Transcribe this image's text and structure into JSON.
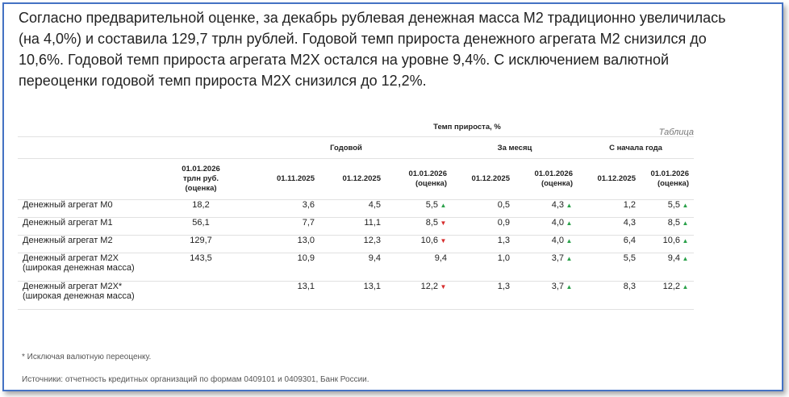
{
  "intro_text": "Согласно предварительной оценке, за декабрь рублевая денежная масса М2 традиционно увеличилась (на 4,0%) и составила 129,7 трлн рублей. Годовой темп прироста денежного агрегата М2 снизился до 10,6%. Годовой темп прироста агрегата М2Х остался на уровне 9,4%. С исключением валютной переоценки годовой темп прироста М2Х снизился до 12,2%.",
  "table_tag": "Таблица",
  "header": {
    "growth_rate": "Темп прироста, %",
    "annual": "Годовой",
    "monthly": "За месяц",
    "ytd": "С начала года",
    "cols": [
      "01.01.2026\nтрлн руб.\n(оценка)",
      "01.11.2025",
      "01.12.2025",
      "01.01.2026\n(оценка)",
      "01.12.2025",
      "01.01.2026\n(оценка)",
      "01.12.2025",
      "01.01.2026\n(оценка)"
    ]
  },
  "rows": [
    {
      "name": "Денежный агрегат М0",
      "cells": [
        "18,2",
        "3,6",
        "4,5",
        "5,5",
        "0,5",
        "4,3",
        "1,2",
        "5,5"
      ],
      "arrows": [
        "",
        "",
        "",
        "up",
        "",
        "up",
        "",
        "up"
      ]
    },
    {
      "name": "Денежный агрегат М1",
      "cells": [
        "56,1",
        "7,7",
        "11,1",
        "8,5",
        "0,9",
        "4,0",
        "4,3",
        "8,5"
      ],
      "arrows": [
        "",
        "",
        "",
        "down",
        "",
        "up",
        "",
        "up"
      ]
    },
    {
      "name": "Денежный агрегат М2",
      "cells": [
        "129,7",
        "13,0",
        "12,3",
        "10,6",
        "1,3",
        "4,0",
        "6,4",
        "10,6"
      ],
      "arrows": [
        "",
        "",
        "",
        "down",
        "",
        "up",
        "",
        "up"
      ]
    },
    {
      "name": "Денежный агрегат М2Х\n(широкая денежная масса)",
      "cells": [
        "143,5",
        "10,9",
        "9,4",
        "9,4",
        "1,0",
        "3,7",
        "5,5",
        "9,4"
      ],
      "arrows": [
        "",
        "",
        "",
        "",
        "",
        "up",
        "",
        "up"
      ]
    },
    {
      "name": "Денежный агрегат М2Х*\n(широкая денежная масса)",
      "cells": [
        "",
        "13,1",
        "13,1",
        "12,2",
        "1,3",
        "3,7",
        "8,3",
        "12,2"
      ],
      "arrows": [
        "",
        "",
        "",
        "down",
        "",
        "up",
        "",
        "up"
      ]
    }
  ],
  "icons": {
    "up": "▲",
    "down": "▼"
  },
  "footnote": "* Исключая валютную переоценку.",
  "source": "Источники: отчетность кредитных организаций по формам 0409101 и 0409301, Банк России."
}
